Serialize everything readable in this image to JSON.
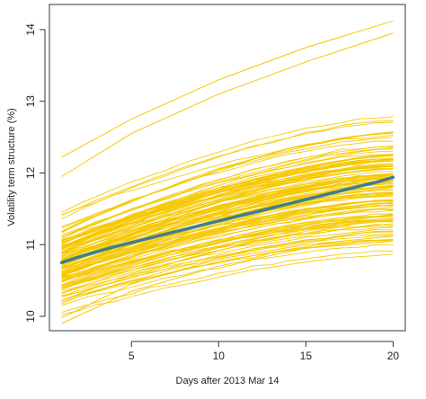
{
  "chart_data": {
    "type": "line",
    "title": "",
    "xlabel": "Days after 2013 Mar 14",
    "ylabel": "Volatility term structure (%)",
    "xlim": [
      0.3,
      20.7
    ],
    "ylim": [
      9.8,
      14.35
    ],
    "xticks": [
      5,
      10,
      15,
      20
    ],
    "yticks": [
      10,
      11,
      12,
      13,
      14
    ],
    "grid": false,
    "legend": "none",
    "colors": {
      "simulated": "#f5c800",
      "mean": "#3d7f8c"
    },
    "ensemble": {
      "description_only": false,
      "count": 130,
      "start_range": [
        9.9,
        12.25
      ],
      "end_range": [
        11.0,
        14.1
      ]
    },
    "mean_series": {
      "x": [
        1,
        2,
        3,
        4,
        5,
        6,
        7,
        8,
        9,
        10,
        11,
        12,
        13,
        14,
        15,
        16,
        17,
        18,
        19,
        20
      ],
      "values": [
        10.75,
        10.83,
        10.9,
        10.97,
        11.03,
        11.09,
        11.15,
        11.21,
        11.27,
        11.33,
        11.39,
        11.45,
        11.51,
        11.57,
        11.63,
        11.69,
        11.75,
        11.81,
        11.87,
        11.94
      ]
    },
    "highlighted_paths": [
      {
        "x": [
          1,
          5,
          10,
          15,
          20
        ],
        "values": [
          12.22,
          12.75,
          13.3,
          13.75,
          14.12
        ]
      },
      {
        "x": [
          1,
          5,
          10,
          15,
          20
        ],
        "values": [
          11.95,
          12.55,
          13.1,
          13.55,
          13.95
        ]
      },
      {
        "x": [
          1,
          5,
          10,
          15,
          20
        ],
        "values": [
          9.9,
          10.35,
          10.7,
          10.95,
          11.05
        ]
      },
      {
        "x": [
          1,
          5,
          10,
          15,
          20
        ],
        "values": [
          9.98,
          10.45,
          10.8,
          11.0,
          11.12
        ]
      }
    ]
  }
}
